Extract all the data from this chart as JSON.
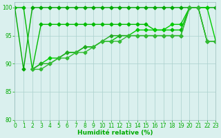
{
  "series": [
    {
      "x": [
        0,
        1,
        2,
        3,
        4,
        5,
        6,
        7,
        8,
        9,
        10,
        11,
        12,
        13,
        14,
        15,
        16,
        17,
        18,
        19,
        20,
        21,
        22,
        23
      ],
      "y": [
        100,
        89,
        100,
        100,
        100,
        100,
        100,
        100,
        100,
        100,
        100,
        100,
        100,
        100,
        100,
        100,
        100,
        100,
        100,
        100,
        100,
        100,
        100,
        100
      ],
      "color": "#00aa00",
      "linewidth": 1.0,
      "marker": "D",
      "markersize": 2.5,
      "linestyle": "-"
    },
    {
      "x": [
        0,
        1,
        2,
        3,
        4,
        5,
        6,
        7,
        8,
        9,
        10,
        11,
        12,
        13,
        14,
        15,
        16,
        17,
        18,
        19,
        20,
        21,
        22,
        23
      ],
      "y": [
        100,
        100,
        89,
        97,
        97,
        97,
        97,
        97,
        97,
        97,
        97,
        97,
        97,
        97,
        97,
        97,
        96,
        96,
        96,
        96,
        100,
        100,
        94,
        94
      ],
      "color": "#00bb00",
      "linewidth": 1.0,
      "marker": "D",
      "markersize": 2.5,
      "linestyle": "-"
    },
    {
      "x": [
        2,
        3,
        4,
        5,
        6,
        7,
        8,
        9,
        10,
        11,
        12,
        13,
        14,
        15,
        16,
        17,
        18,
        19,
        20,
        21,
        22,
        23
      ],
      "y": [
        89,
        90,
        91,
        91,
        92,
        92,
        93,
        93,
        94,
        94,
        95,
        95,
        96,
        96,
        96,
        96,
        97,
        97,
        100,
        100,
        100,
        94
      ],
      "color": "#00cc00",
      "linewidth": 1.0,
      "marker": "D",
      "markersize": 2.5,
      "linestyle": "-"
    },
    {
      "x": [
        2,
        3,
        4,
        5,
        6,
        7,
        8,
        9,
        10,
        11,
        12,
        13,
        14,
        15,
        16,
        17,
        18,
        19,
        20,
        21,
        22,
        23
      ],
      "y": [
        89,
        90,
        90,
        91,
        92,
        92,
        93,
        93,
        94,
        95,
        95,
        95,
        95,
        95,
        95,
        95,
        95,
        95,
        100,
        100,
        94,
        94
      ],
      "color": "#22aa22",
      "linewidth": 1.0,
      "marker": "D",
      "markersize": 2.5,
      "linestyle": "-"
    },
    {
      "x": [
        2,
        3,
        4,
        5,
        6,
        7,
        8,
        9,
        10,
        11,
        12,
        13,
        14,
        15,
        16,
        17,
        18,
        19,
        20,
        21,
        22,
        23
      ],
      "y": [
        89,
        89,
        90,
        91,
        91,
        92,
        92,
        93,
        94,
        94,
        94,
        95,
        95,
        95,
        95,
        95,
        95,
        95,
        100,
        100,
        94,
        94
      ],
      "color": "#33bb33",
      "linewidth": 1.0,
      "marker": "D",
      "markersize": 2.5,
      "linestyle": "-"
    }
  ],
  "xlim": [
    0,
    23
  ],
  "ylim": [
    80,
    101
  ],
  "yticks": [
    80,
    85,
    90,
    95,
    100
  ],
  "xticks": [
    0,
    1,
    2,
    3,
    4,
    5,
    6,
    7,
    8,
    9,
    10,
    11,
    12,
    13,
    14,
    15,
    16,
    17,
    18,
    19,
    20,
    21,
    22,
    23
  ],
  "xlabel": "Humidité relative (%)",
  "bg_color": "#daf0ee",
  "grid_color": "#aacfcc",
  "tick_color": "#00aa00",
  "label_color": "#00aa00",
  "tick_fontsize": 5.5,
  "label_fontsize": 6.5
}
